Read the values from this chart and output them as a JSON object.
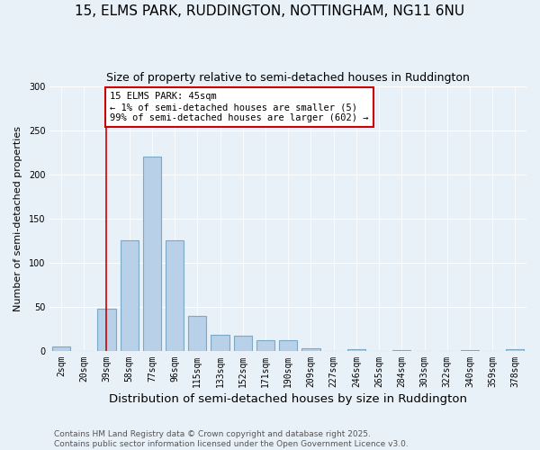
{
  "title": "15, ELMS PARK, RUDDINGTON, NOTTINGHAM, NG11 6NU",
  "subtitle": "Size of property relative to semi-detached houses in Ruddington",
  "xlabel": "Distribution of semi-detached houses by size in Ruddington",
  "ylabel": "Number of semi-detached properties",
  "categories": [
    "2sqm",
    "20sqm",
    "39sqm",
    "58sqm",
    "77sqm",
    "96sqm",
    "115sqm",
    "133sqm",
    "152sqm",
    "171sqm",
    "190sqm",
    "209sqm",
    "227sqm",
    "246sqm",
    "265sqm",
    "284sqm",
    "303sqm",
    "322sqm",
    "340sqm",
    "359sqm",
    "378sqm"
  ],
  "values": [
    5,
    0,
    48,
    125,
    220,
    125,
    40,
    18,
    17,
    12,
    12,
    3,
    0,
    2,
    0,
    1,
    0,
    0,
    1,
    0,
    2
  ],
  "bar_color": "#b8d0e8",
  "bar_edge_color": "#7aaac8",
  "vline_x_idx": 2,
  "vline_color": "#cc0000",
  "annotation_text": "15 ELMS PARK: 45sqm\n← 1% of semi-detached houses are smaller (5)\n99% of semi-detached houses are larger (602) →",
  "annotation_box_color": "#ffffff",
  "annotation_box_edge_color": "#cc0000",
  "ylim": [
    0,
    300
  ],
  "yticks": [
    0,
    50,
    100,
    150,
    200,
    250,
    300
  ],
  "background_color": "#e8f0f8",
  "grid_color": "#ffffff",
  "footer": "Contains HM Land Registry data © Crown copyright and database right 2025.\nContains public sector information licensed under the Open Government Licence v3.0.",
  "title_fontsize": 11,
  "subtitle_fontsize": 9,
  "xlabel_fontsize": 9.5,
  "ylabel_fontsize": 8,
  "tick_fontsize": 7,
  "annotation_fontsize": 7.5,
  "footer_fontsize": 6.5
}
